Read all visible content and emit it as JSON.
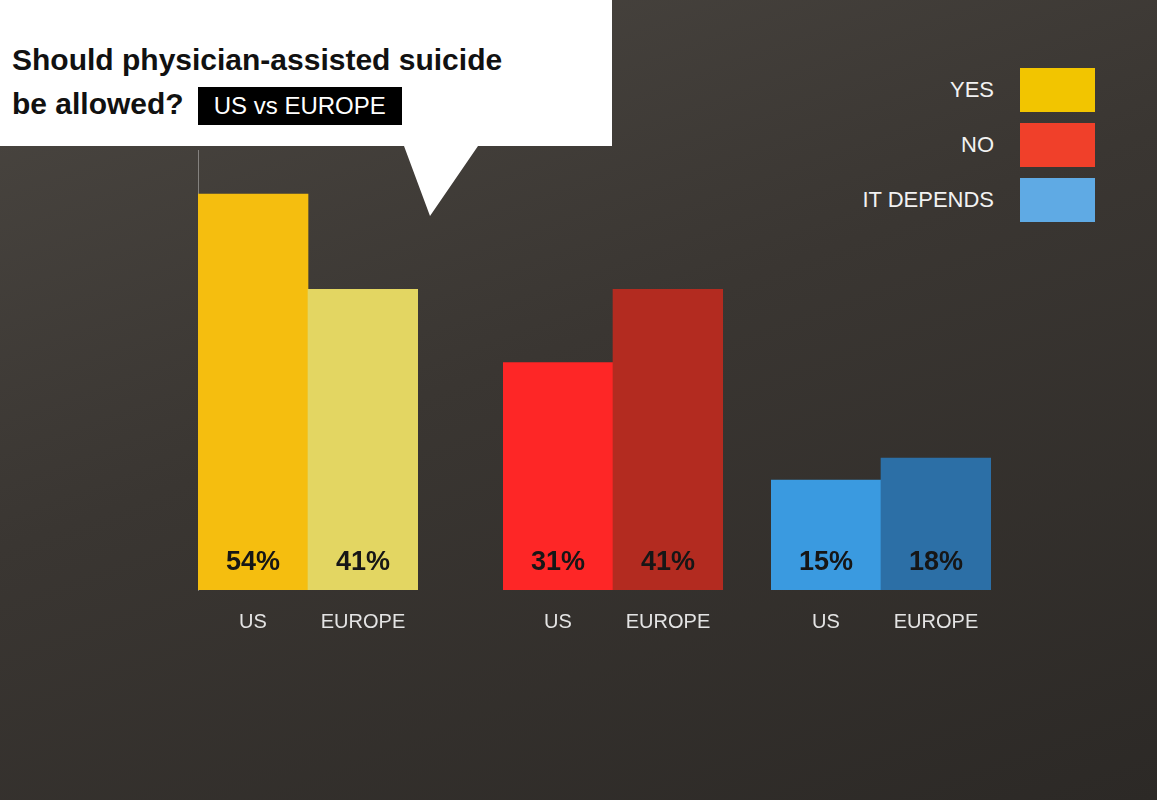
{
  "chart_data": {
    "type": "bar",
    "title": "Should physician-assisted suicide be allowed?",
    "subtitle": "US vs EUROPE",
    "categories": [
      "US",
      "EUROPE"
    ],
    "series": [
      {
        "name": "YES",
        "color": "#f2c500",
        "colors": [
          "#f5be0f",
          "#e3d662"
        ],
        "values": [
          54,
          41
        ],
        "value_labels": [
          "54%",
          "41%"
        ]
      },
      {
        "name": "NO",
        "color": "#f0402a",
        "colors": [
          "#fe2626",
          "#b32b20"
        ],
        "values": [
          31,
          41
        ],
        "value_labels": [
          "31%",
          "41%"
        ]
      },
      {
        "name": "IT DEPENDS",
        "color": "#5faae4",
        "colors": [
          "#3a9ae0",
          "#2c6fa6"
        ],
        "values": [
          15,
          18
        ],
        "value_labels": [
          "15%",
          "18%"
        ]
      }
    ],
    "ylim": [
      0,
      60
    ],
    "grid": false,
    "legend": "top-right",
    "data_labels": true,
    "tick_labels": "x"
  }
}
